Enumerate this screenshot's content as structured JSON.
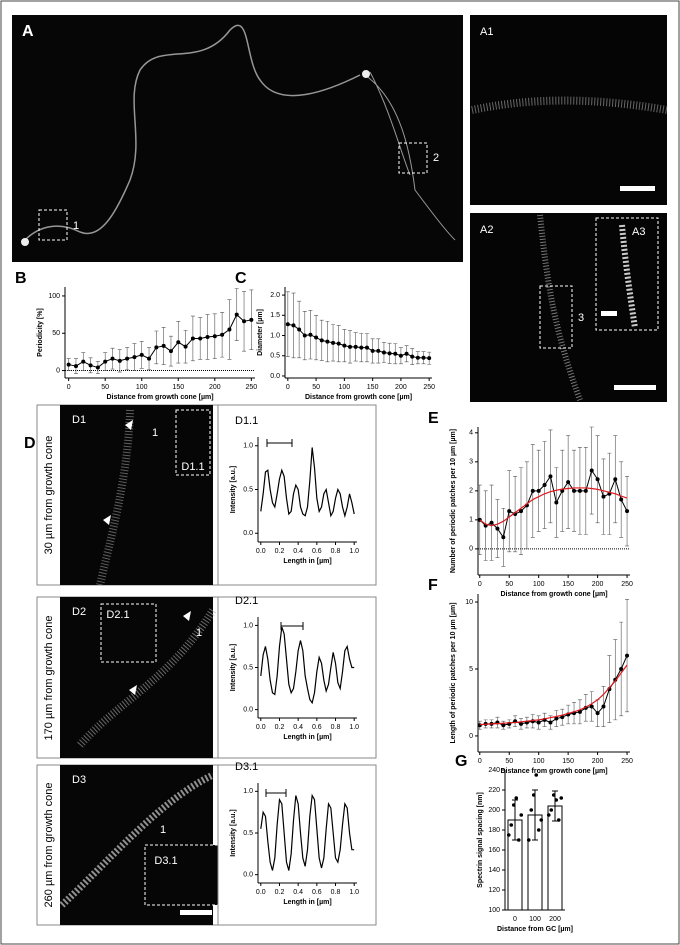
{
  "images": [
    {
      "label": "A",
      "insets": [
        "1",
        "2"
      ]
    },
    {
      "label": "A1"
    },
    {
      "label": "A2",
      "insets": [
        "A3",
        "3"
      ]
    },
    {
      "letter": "D",
      "label": "D1",
      "caption": "30 µm from growth cone",
      "insets": [
        "D1.1",
        "1"
      ]
    },
    {
      "label": "D2",
      "caption": "170 µm from growth cone",
      "insets": [
        "D2.1",
        "1"
      ]
    },
    {
      "label": "D3",
      "caption": "260 µm from growth cone",
      "insets": [
        "D3.1",
        "1"
      ]
    }
  ],
  "chart_data": [
    {
      "type": "line",
      "letter": "B",
      "x_label": "Distance from growth cone [µm]",
      "y_label": "Periodicity [%]",
      "x": [
        0,
        10,
        20,
        30,
        40,
        50,
        60,
        70,
        80,
        90,
        100,
        110,
        120,
        130,
        140,
        150,
        160,
        170,
        180,
        190,
        200,
        210,
        220,
        230,
        240,
        250
      ],
      "series": [
        {
          "color": "#000000",
          "marker": true,
          "values": [
            8,
            6,
            12,
            7,
            4,
            12,
            16,
            13,
            16,
            18,
            21,
            16,
            31,
            33,
            26,
            38,
            32,
            43,
            43,
            45,
            46,
            48,
            55,
            75,
            66,
            68
          ],
          "errors": [
            8,
            10,
            12,
            10,
            8,
            12,
            14,
            15,
            15,
            18,
            18,
            15,
            22,
            25,
            20,
            28,
            22,
            30,
            28,
            30,
            30,
            30,
            40,
            35,
            40,
            40
          ]
        }
      ],
      "xlim": [
        -5,
        255
      ],
      "xticks": [
        0,
        50,
        100,
        150,
        200,
        250
      ],
      "ylim": [
        -10,
        112
      ],
      "yticks": [
        0,
        50,
        100
      ],
      "zero_line": true
    },
    {
      "type": "line",
      "letter": "C",
      "x_label": "Distance from growth cone [µm]",
      "y_label": "Diameter [µm]",
      "x": [
        0,
        10,
        20,
        30,
        40,
        50,
        60,
        70,
        80,
        90,
        100,
        110,
        120,
        130,
        140,
        150,
        160,
        170,
        180,
        190,
        200,
        210,
        220,
        230,
        240,
        250
      ],
      "series": [
        {
          "color": "#000000",
          "marker": true,
          "values": [
            1.28,
            1.25,
            1.15,
            1.0,
            1.02,
            0.95,
            0.88,
            0.85,
            0.82,
            0.8,
            0.75,
            0.72,
            0.72,
            0.7,
            0.7,
            0.62,
            0.62,
            0.58,
            0.56,
            0.55,
            0.5,
            0.55,
            0.48,
            0.45,
            0.45,
            0.44
          ],
          "errors": [
            0.8,
            0.8,
            0.7,
            0.6,
            0.6,
            0.55,
            0.5,
            0.5,
            0.45,
            0.45,
            0.4,
            0.4,
            0.35,
            0.35,
            0.35,
            0.3,
            0.3,
            0.25,
            0.25,
            0.25,
            0.2,
            0.2,
            0.2,
            0.15,
            0.15,
            0.15
          ]
        }
      ],
      "xlim": [
        -5,
        255
      ],
      "xticks": [
        0,
        50,
        100,
        150,
        200,
        250
      ],
      "ylim": [
        -0.05,
        2.2
      ],
      "yticks": [
        {
          "value": 0,
          "label": "0.0"
        },
        {
          "value": 0.5,
          "label": "0.5"
        },
        {
          "value": 1,
          "label": "1.0"
        },
        {
          "value": 1.5,
          "label": "1.5"
        },
        {
          "value": 2,
          "label": "2.0"
        }
      ]
    },
    {
      "type": "line",
      "title": "D1.1",
      "x_label": "Length in [µm]",
      "y_label": "Intensity [a.u.]",
      "x": [
        0,
        0.025,
        0.05,
        0.075,
        0.1,
        0.125,
        0.15,
        0.175,
        0.2,
        0.225,
        0.25,
        0.275,
        0.3,
        0.325,
        0.35,
        0.375,
        0.4,
        0.425,
        0.45,
        0.475,
        0.5,
        0.525,
        0.55,
        0.575,
        0.6,
        0.625,
        0.65,
        0.675,
        0.7,
        0.725,
        0.75,
        0.775,
        0.8,
        0.825,
        0.85,
        0.875,
        0.9,
        0.925,
        0.95,
        0.975,
        1
      ],
      "series": [
        {
          "color": "#000000",
          "values": [
            0.25,
            0.45,
            0.7,
            0.72,
            0.5,
            0.35,
            0.3,
            0.45,
            0.62,
            0.72,
            0.65,
            0.4,
            0.22,
            0.25,
            0.45,
            0.55,
            0.5,
            0.3,
            0.22,
            0.2,
            0.3,
            0.6,
            0.98,
            0.75,
            0.4,
            0.25,
            0.3,
            0.45,
            0.5,
            0.35,
            0.2,
            0.25,
            0.4,
            0.5,
            0.45,
            0.3,
            0.2,
            0.3,
            0.45,
            0.35,
            0.22
          ]
        }
      ],
      "xlim": [
        -0.03,
        1.03
      ],
      "xticks": [
        {
          "value": 0,
          "label": "0.0"
        },
        {
          "value": 0.2,
          "label": "0.2"
        },
        {
          "value": 0.4,
          "label": "0.4"
        },
        {
          "value": 0.6,
          "label": "0.6"
        },
        {
          "value": 0.8,
          "label": "0.8"
        },
        {
          "value": 1,
          "label": "1.0"
        }
      ],
      "ylim": [
        -0.1,
        1.1
      ],
      "yticks": [
        {
          "value": 0,
          "label": "0.0"
        },
        {
          "value": 0.5,
          "label": "0.5"
        },
        {
          "value": 1,
          "label": "1.0"
        }
      ]
    },
    {
      "type": "line",
      "title": "D2.1",
      "x_label": "Length in [µm]",
      "y_label": "Intensity [a.u.]",
      "x": [
        0,
        0.025,
        0.05,
        0.075,
        0.1,
        0.125,
        0.15,
        0.175,
        0.2,
        0.225,
        0.25,
        0.275,
        0.3,
        0.325,
        0.35,
        0.375,
        0.4,
        0.425,
        0.45,
        0.475,
        0.5,
        0.525,
        0.55,
        0.575,
        0.6,
        0.625,
        0.65,
        0.675,
        0.7,
        0.725,
        0.75,
        0.775,
        0.8,
        0.825,
        0.85,
        0.875,
        0.9,
        0.925,
        0.95,
        0.975,
        1
      ],
      "series": [
        {
          "color": "#000000",
          "values": [
            0.4,
            0.65,
            0.75,
            0.6,
            0.35,
            0.2,
            0.18,
            0.4,
            0.75,
            0.98,
            0.9,
            0.6,
            0.3,
            0.2,
            0.25,
            0.45,
            0.7,
            0.82,
            0.7,
            0.4,
            0.25,
            0.12,
            0.08,
            0.2,
            0.45,
            0.62,
            0.55,
            0.35,
            0.22,
            0.3,
            0.5,
            0.68,
            0.55,
            0.32,
            0.25,
            0.45,
            0.7,
            0.75,
            0.6,
            0.5,
            0.5
          ]
        }
      ],
      "xlim": [
        -0.03,
        1.03
      ],
      "xticks": [
        {
          "value": 0,
          "label": "0.0"
        },
        {
          "value": 0.2,
          "label": "0.2"
        },
        {
          "value": 0.4,
          "label": "0.4"
        },
        {
          "value": 0.6,
          "label": "0.6"
        },
        {
          "value": 0.8,
          "label": "0.8"
        },
        {
          "value": 1,
          "label": "1.0"
        }
      ],
      "ylim": [
        -0.1,
        1.1
      ],
      "yticks": [
        {
          "value": 0,
          "label": "0.0"
        },
        {
          "value": 0.5,
          "label": "0.5"
        },
        {
          "value": 1,
          "label": "1.0"
        }
      ]
    },
    {
      "type": "line",
      "title": "D3.1",
      "x_label": "Length in [µm]",
      "y_label": "Intensity [a.u.]",
      "x": [
        0,
        0.025,
        0.05,
        0.075,
        0.1,
        0.125,
        0.15,
        0.175,
        0.2,
        0.225,
        0.25,
        0.275,
        0.3,
        0.325,
        0.35,
        0.375,
        0.4,
        0.425,
        0.45,
        0.475,
        0.5,
        0.525,
        0.55,
        0.575,
        0.6,
        0.625,
        0.65,
        0.675,
        0.7,
        0.725,
        0.75,
        0.775,
        0.8,
        0.825,
        0.85,
        0.875,
        0.9,
        0.925,
        0.95,
        0.975,
        1
      ],
      "series": [
        {
          "color": "#000000",
          "values": [
            0.55,
            0.75,
            0.7,
            0.4,
            0.15,
            0.05,
            0.2,
            0.6,
            0.9,
            0.85,
            0.5,
            0.15,
            0.05,
            0.25,
            0.65,
            0.95,
            0.85,
            0.5,
            0.2,
            0.1,
            0.3,
            0.7,
            0.95,
            0.9,
            0.55,
            0.2,
            0.08,
            0.2,
            0.55,
            0.85,
            0.8,
            0.5,
            0.2,
            0.15,
            0.3,
            0.6,
            0.85,
            0.8,
            0.5,
            0.3,
            0.3
          ]
        }
      ],
      "xlim": [
        -0.03,
        1.03
      ],
      "xticks": [
        {
          "value": 0,
          "label": "0.0"
        },
        {
          "value": 0.2,
          "label": "0.2"
        },
        {
          "value": 0.4,
          "label": "0.4"
        },
        {
          "value": 0.6,
          "label": "0.6"
        },
        {
          "value": 0.8,
          "label": "0.8"
        },
        {
          "value": 1,
          "label": "1.0"
        }
      ],
      "ylim": [
        -0.1,
        1.1
      ],
      "yticks": [
        {
          "value": 0,
          "label": "0.0"
        },
        {
          "value": 0.5,
          "label": "0.5"
        },
        {
          "value": 1,
          "label": "1.0"
        }
      ]
    },
    {
      "type": "line",
      "letter": "E",
      "x_label": "Distance from growth cone [µm]",
      "y_label": "Number of periodic patches per 10 µm [µm]",
      "x": [
        0,
        10,
        20,
        30,
        40,
        50,
        60,
        70,
        80,
        90,
        100,
        110,
        120,
        130,
        140,
        150,
        160,
        170,
        180,
        190,
        200,
        210,
        220,
        230,
        240,
        250
      ],
      "series": [
        {
          "color": "#000000",
          "marker": true,
          "values": [
            1.0,
            0.8,
            0.9,
            0.7,
            0.4,
            1.3,
            1.2,
            1.3,
            1.5,
            2.0,
            2.0,
            2.2,
            2.5,
            1.6,
            2.0,
            2.3,
            2.0,
            2.0,
            2.0,
            2.7,
            2.4,
            1.8,
            1.9,
            2.4,
            1.7,
            1.3
          ],
          "errors": [
            1.2,
            1.2,
            1.3,
            1.0,
            1.0,
            1.4,
            1.3,
            1.5,
            1.5,
            1.6,
            1.4,
            1.5,
            1.6,
            1.2,
            1.4,
            1.6,
            1.4,
            1.5,
            1.5,
            1.5,
            1.5,
            1.3,
            1.4,
            1.5,
            1.3,
            1.2
          ]
        },
        {
          "color": "#e0191e",
          "values": [
            1.0,
            0.85,
            0.8,
            0.85,
            0.95,
            1.1,
            1.25,
            1.4,
            1.55,
            1.7,
            1.8,
            1.9,
            1.97,
            2.02,
            2.06,
            2.08,
            2.1,
            2.1,
            2.1,
            2.08,
            2.05,
            2.0,
            1.95,
            1.9,
            1.82,
            1.75
          ]
        }
      ],
      "xlim": [
        -3,
        255
      ],
      "xticks": [
        0,
        50,
        100,
        150,
        200,
        250
      ],
      "ylim": [
        -0.9,
        4.2
      ],
      "yticks": [
        0,
        1,
        2,
        3,
        4
      ],
      "zero_line": true
    },
    {
      "type": "line",
      "letter": "F",
      "x_label": "Distance from growth cone [µm]",
      "y_label": "Length of periodic patches per 10 µm [µm]",
      "x": [
        0,
        10,
        20,
        30,
        40,
        50,
        60,
        70,
        80,
        90,
        100,
        110,
        120,
        130,
        140,
        150,
        160,
        170,
        180,
        190,
        200,
        210,
        220,
        230,
        240,
        250
      ],
      "series": [
        {
          "color": "#000000",
          "marker": true,
          "values": [
            0.8,
            0.9,
            0.9,
            1.0,
            0.8,
            0.9,
            1.1,
            0.9,
            1.0,
            1.1,
            1.0,
            1.2,
            1.0,
            1.3,
            1.4,
            1.6,
            1.7,
            1.8,
            2.1,
            2.2,
            1.7,
            2.2,
            3.5,
            4.2,
            5.0,
            6.0
          ],
          "errors": [
            0.3,
            0.3,
            0.3,
            0.4,
            0.3,
            0.3,
            0.4,
            0.4,
            0.4,
            0.5,
            0.5,
            0.5,
            0.5,
            0.6,
            0.6,
            0.7,
            0.8,
            0.9,
            1.0,
            1.1,
            1.0,
            1.5,
            2.5,
            3.0,
            3.5,
            4.2
          ]
        },
        {
          "color": "#e0191e",
          "values": [
            0.85,
            0.87,
            0.9,
            0.92,
            0.95,
            0.98,
            1.0,
            1.05,
            1.1,
            1.15,
            1.2,
            1.28,
            1.36,
            1.45,
            1.55,
            1.68,
            1.8,
            1.95,
            2.15,
            2.4,
            2.7,
            3.1,
            3.6,
            4.1,
            4.7,
            5.3
          ]
        }
      ],
      "xlim": [
        -3,
        255
      ],
      "xticks": [
        0,
        50,
        100,
        150,
        200,
        250
      ],
      "ylim": [
        -1.2,
        10.6
      ],
      "yticks": [
        0,
        5,
        10
      ]
    },
    {
      "type": "bar",
      "letter": "G",
      "x_label": "Distance from GC [µm]",
      "y_label": "Spectrin signal spacing [nm]",
      "categories": [
        "0",
        "100",
        "200"
      ],
      "values": [
        190,
        195,
        204
      ],
      "errors": [
        20,
        25,
        15
      ],
      "points": [
        [
          175,
          185,
          205,
          212,
          170,
          195
        ],
        [
          170,
          200,
          215,
          235,
          180,
          190
        ],
        [
          195,
          200,
          215,
          210,
          190,
          212
        ]
      ],
      "color": "#ffffff",
      "ylim": [
        100,
        240
      ],
      "yticks": [
        100,
        120,
        140,
        160,
        180,
        200,
        220,
        240
      ]
    }
  ]
}
